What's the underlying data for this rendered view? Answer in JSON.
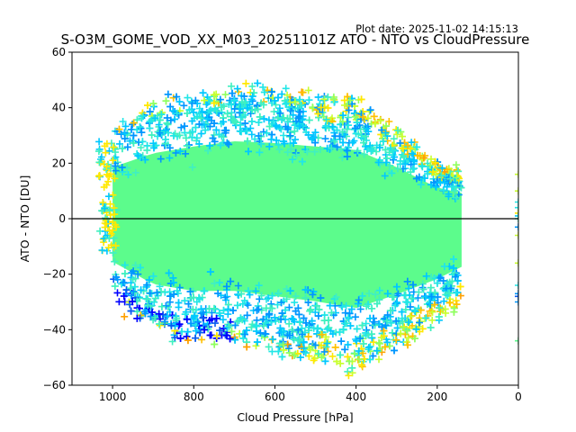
{
  "chart_data": {
    "type": "scatter",
    "title": "S-O3M_GOME_VOD_XX_M03_20251101Z ATO - NTO vs CloudPressure",
    "subtitle": "Plot date: 2025-11-02 14:15:13",
    "xlabel": "Cloud Pressure [hPa]",
    "ylabel": "ATO - NTO [DU]",
    "xlim": [
      1100,
      0
    ],
    "ylim": [
      -60,
      60
    ],
    "x_inverted": true,
    "xticks": [
      1000,
      800,
      600,
      400,
      200,
      0
    ],
    "xtick_labels": [
      "1000",
      "800",
      "600",
      "400",
      "200",
      "0"
    ],
    "yticks": [
      60,
      40,
      20,
      0,
      -20,
      -40,
      -60
    ],
    "ytick_labels": [
      "60",
      "40",
      "20",
      "0",
      "−20",
      "−40",
      "−60"
    ],
    "reference_line": {
      "y": 0,
      "color": "#000000"
    },
    "marker": "+",
    "grid": false,
    "legend": "none",
    "colormap": [
      "#0000ff",
      "#0a5cf0",
      "#0096ff",
      "#00c8ff",
      "#22e6e6",
      "#40f0c0",
      "#5cfc8c",
      "#90ff60",
      "#c8ff30",
      "#ffe800",
      "#ffc000",
      "#ffa000"
    ],
    "core_color": "#5cfc8c",
    "point_cloud": {
      "core": {
        "x_range": [
          1000,
          140
        ],
        "y_mean": 0,
        "y_spread": 18
      },
      "upper_envelope": [
        [
          1000,
          30
        ],
        [
          900,
          38
        ],
        [
          800,
          42
        ],
        [
          700,
          45
        ],
        [
          600,
          44
        ],
        [
          500,
          42
        ],
        [
          400,
          40
        ],
        [
          300,
          30
        ],
        [
          200,
          18
        ],
        [
          140,
          15
        ]
      ],
      "lower_envelope": [
        [
          1000,
          -25
        ],
        [
          900,
          -38
        ],
        [
          800,
          -42
        ],
        [
          700,
          -42
        ],
        [
          600,
          -45
        ],
        [
          500,
          -48
        ],
        [
          400,
          -52
        ],
        [
          300,
          -44
        ],
        [
          200,
          -35
        ],
        [
          140,
          -28
        ]
      ],
      "outliers_at_zero_pressure": [
        16,
        10,
        6,
        4,
        2,
        1,
        0,
        -3,
        -6,
        -16,
        -24,
        -27,
        -28,
        -30,
        -44
      ]
    }
  }
}
